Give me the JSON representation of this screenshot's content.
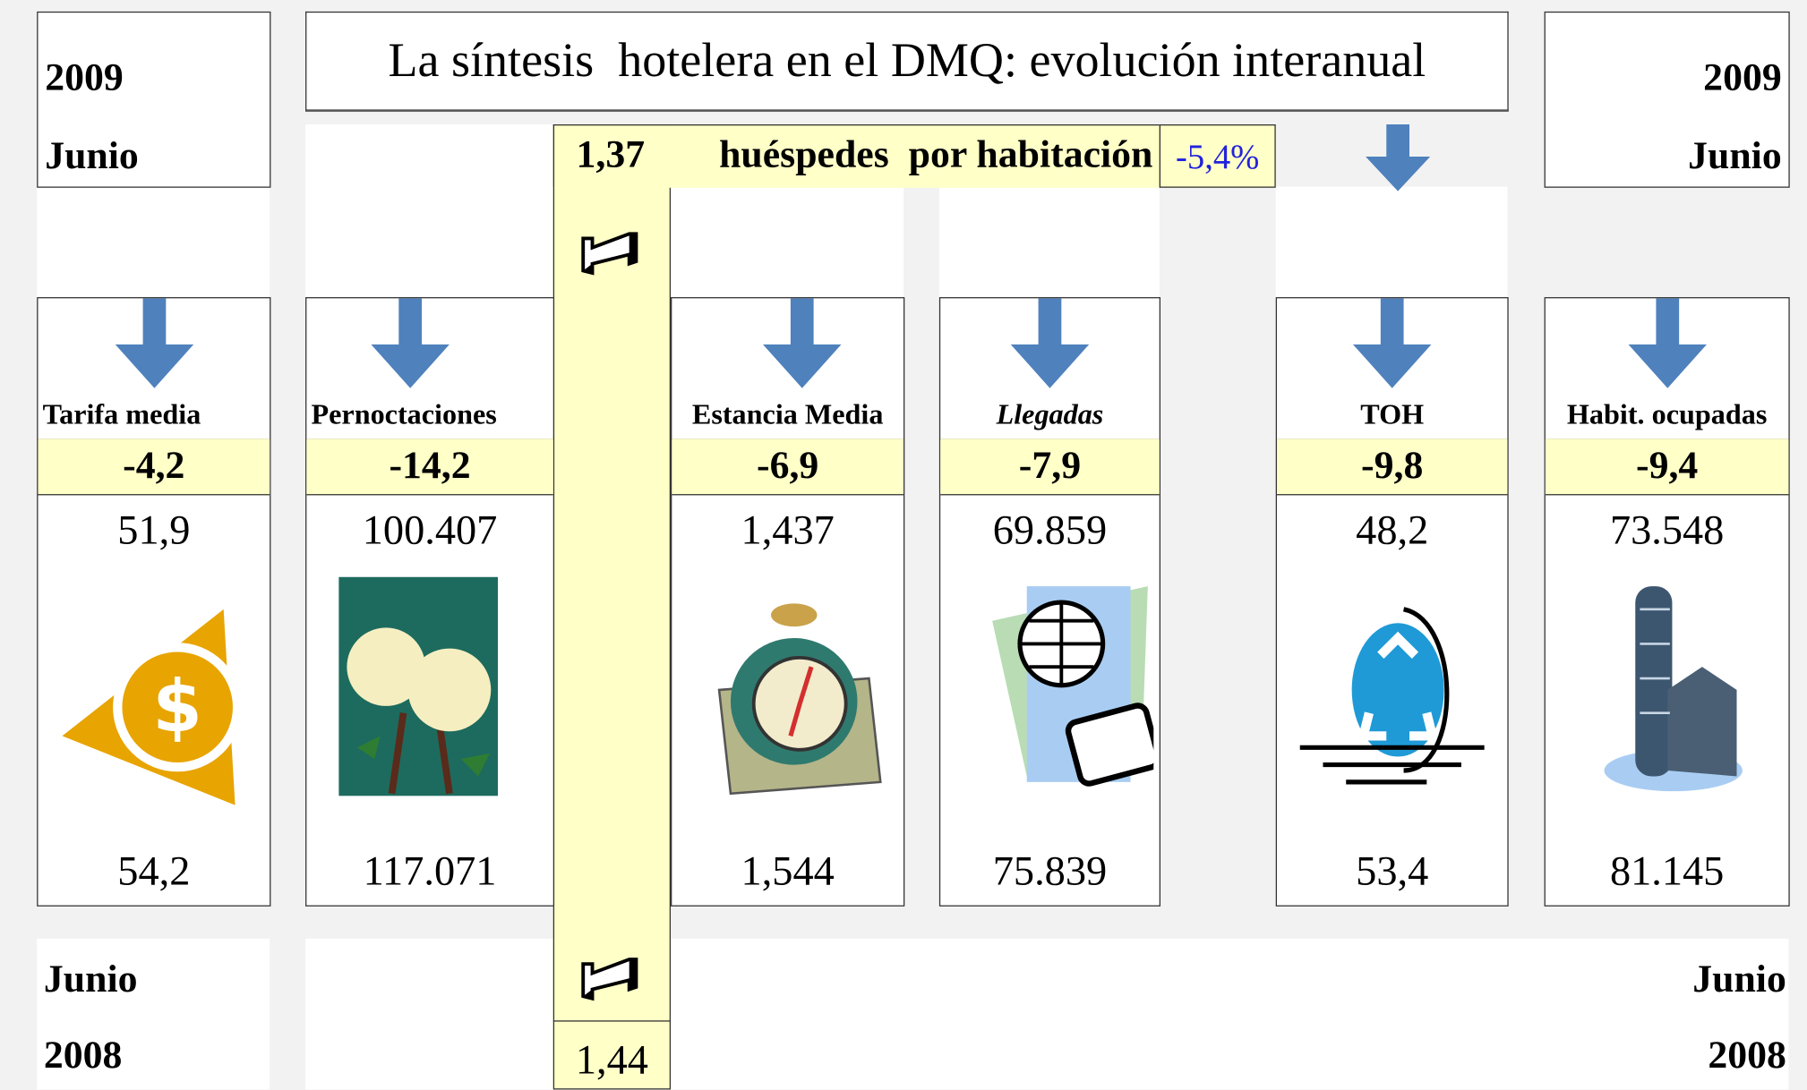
{
  "header": {
    "title": "La síntesis  hotelera en el DMQ: evolución interanual"
  },
  "corners": {
    "top_left": {
      "year": "2009",
      "month": "Junio"
    },
    "top_right": {
      "year": "2009",
      "month": "Junio"
    },
    "bottom_left": {
      "month": "Junio",
      "year": "2008"
    },
    "bottom_right": {
      "month": "Junio",
      "year": "2008"
    }
  },
  "guests": {
    "current": "1,37",
    "label": "huéspedes  por habitación",
    "change": "-5,4%",
    "previous": "1,44"
  },
  "panels": [
    {
      "label": "Tarifa media",
      "change": "-4,2",
      "current": "51,9",
      "previous": "54,2"
    },
    {
      "label": "Pernoctaciones",
      "change": "-14,2",
      "current": "100.407",
      "previous": "117.071"
    },
    {
      "label": "Estancia Media",
      "change": "-6,9",
      "current": "1,437",
      "previous": "1,544"
    },
    {
      "label": "Llegadas",
      "change": "-7,9",
      "current": "69.859",
      "previous": "75.839"
    },
    {
      "label": "TOH",
      "change": "-9,8",
      "current": "48,2",
      "previous": "53,4"
    },
    {
      "label": "Habit. ocupadas",
      "change": "-9,4",
      "current": "73.548",
      "previous": "81.145"
    }
  ]
}
